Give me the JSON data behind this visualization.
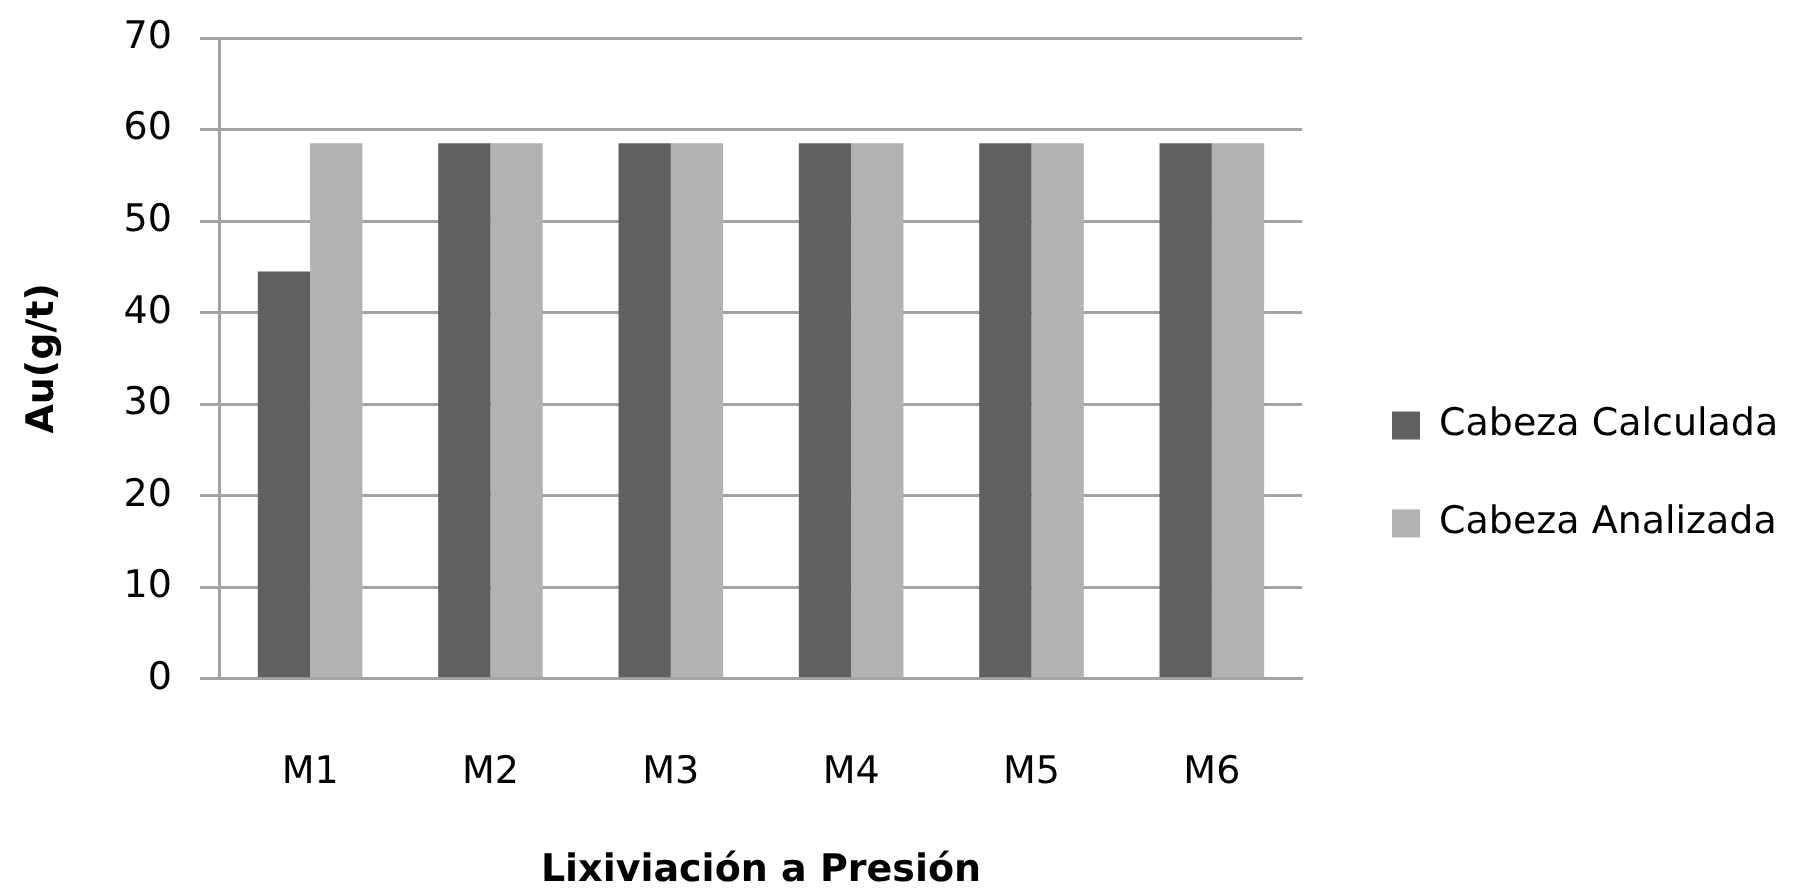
{
  "chart_data": {
    "type": "bar",
    "xlabel": "Lixiviación a Presión",
    "ylabel": "Au(g/t)",
    "categories": [
      "M1",
      "M2",
      "M3",
      "M4",
      "M5",
      "M6"
    ],
    "series": [
      {
        "name": "Cabeza Calculada",
        "color": "#606060",
        "values": [
          44.5,
          58.5,
          58.5,
          58.5,
          58.5,
          58.5
        ]
      },
      {
        "name": "Cabeza Analizada",
        "color": "#b2b2b2",
        "values": [
          58.5,
          58.5,
          58.5,
          58.5,
          58.5,
          58.5
        ]
      }
    ],
    "ylim": [
      0,
      70
    ],
    "yticks": [
      0,
      10,
      20,
      30,
      40,
      50,
      60,
      70
    ],
    "grid": "y",
    "legend": "right"
  }
}
